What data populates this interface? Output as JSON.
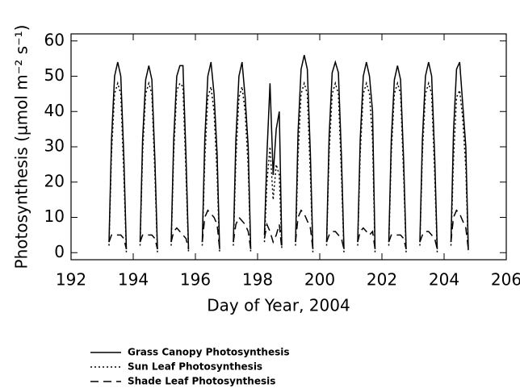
{
  "chart_data": {
    "type": "line",
    "xlabel": "Day of Year, 2004",
    "ylabel": "Photosynthesis (µmol m⁻² s⁻¹)",
    "xlim": [
      192,
      206
    ],
    "xticks": [
      192,
      194,
      196,
      198,
      200,
      202,
      204,
      206
    ],
    "ylim": [
      -2,
      62
    ],
    "yticks": [
      0,
      10,
      20,
      30,
      40,
      50,
      60
    ],
    "x": [
      193.22,
      193.3,
      193.4,
      193.5,
      193.6,
      193.7,
      193.78,
      193.9,
      194.22,
      194.3,
      194.4,
      194.5,
      194.6,
      194.7,
      194.78,
      194.9,
      195.22,
      195.3,
      195.4,
      195.5,
      195.6,
      195.7,
      195.78,
      195.9,
      196.22,
      196.3,
      196.4,
      196.5,
      196.6,
      196.7,
      196.78,
      196.9,
      197.22,
      197.3,
      197.4,
      197.5,
      197.6,
      197.7,
      197.78,
      197.9,
      198.22,
      198.3,
      198.4,
      198.5,
      198.6,
      198.7,
      198.78,
      198.9,
      199.22,
      199.3,
      199.4,
      199.5,
      199.6,
      199.7,
      199.78,
      199.9,
      200.22,
      200.3,
      200.4,
      200.5,
      200.6,
      200.7,
      200.78,
      200.9,
      201.22,
      201.3,
      201.4,
      201.5,
      201.6,
      201.7,
      201.78,
      201.9,
      202.22,
      202.3,
      202.4,
      202.5,
      202.6,
      202.7,
      202.78,
      202.9,
      203.22,
      203.3,
      203.4,
      203.5,
      203.6,
      203.7,
      203.78,
      203.9,
      204.22,
      204.3,
      204.4,
      204.5,
      204.6,
      204.7,
      204.78
    ],
    "series": [
      {
        "name": "Grass Canopy Photosynthesis",
        "color": "#000000",
        "dash": "solid",
        "values": [
          3,
          32,
          50,
          54,
          50,
          27,
          1,
          null,
          3,
          32,
          49,
          53,
          49,
          26,
          1,
          null,
          3,
          32,
          50,
          53,
          53,
          27,
          1,
          null,
          3,
          32,
          50,
          54,
          45,
          28,
          1,
          null,
          3,
          32,
          50,
          54,
          44,
          30,
          1,
          null,
          5,
          28,
          48,
          22,
          35,
          40,
          2,
          null,
          3,
          34,
          52,
          56,
          52,
          28,
          1,
          null,
          3,
          33,
          51,
          54,
          51,
          27,
          1,
          null,
          3,
          32,
          50,
          54,
          50,
          40,
          1,
          null,
          3,
          32,
          49,
          53,
          49,
          26,
          1,
          null,
          3,
          32,
          50,
          54,
          50,
          27,
          1,
          null,
          3,
          34,
          52,
          54,
          42,
          30,
          1
        ]
      },
      {
        "name": "Sun Leaf Photosynthesis",
        "color": "#000000",
        "dash": "dotted",
        "values": [
          2,
          28,
          45,
          48,
          45,
          22,
          0,
          null,
          2,
          28,
          45,
          48,
          45,
          22,
          0,
          null,
          2,
          28,
          46,
          48,
          47,
          22,
          0,
          null,
          2,
          26,
          44,
          47,
          40,
          22,
          0,
          null,
          2,
          26,
          44,
          47,
          40,
          24,
          0,
          null,
          3,
          20,
          30,
          15,
          25,
          22,
          1,
          null,
          2,
          27,
          45,
          48,
          45,
          22,
          0,
          null,
          2,
          28,
          45,
          48,
          45,
          22,
          0,
          null,
          2,
          28,
          45,
          48,
          45,
          32,
          0,
          null,
          2,
          28,
          45,
          48,
          45,
          22,
          0,
          null,
          2,
          28,
          45,
          48,
          45,
          22,
          0,
          null,
          2,
          26,
          44,
          46,
          38,
          24,
          0
        ]
      },
      {
        "name": "Shade Leaf Photosynthesis",
        "color": "#000000",
        "dash": "dashed",
        "values": [
          3,
          5,
          5,
          5,
          5,
          4,
          1,
          null,
          3,
          5,
          5,
          5,
          5,
          4,
          1,
          null,
          3,
          6,
          7,
          6,
          5,
          4,
          1,
          null,
          3,
          10,
          12,
          11,
          10,
          8,
          1,
          null,
          3,
          8,
          10,
          9,
          8,
          6,
          1,
          null,
          4,
          8,
          6,
          3,
          5,
          8,
          1,
          null,
          3,
          10,
          12,
          11,
          9,
          7,
          1,
          null,
          3,
          5,
          6,
          6,
          5,
          4,
          1,
          null,
          3,
          6,
          7,
          6,
          5,
          6,
          1,
          null,
          3,
          5,
          5,
          5,
          5,
          4,
          1,
          null,
          3,
          5,
          6,
          6,
          5,
          4,
          1,
          null,
          3,
          10,
          12,
          11,
          9,
          7,
          1
        ]
      }
    ]
  }
}
